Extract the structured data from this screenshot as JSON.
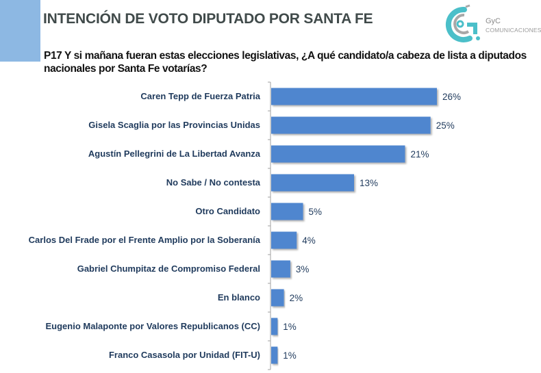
{
  "header": {
    "title": "INTENCIÓN DE VOTO DIPUTADO POR SANTA FE",
    "logo": {
      "name": "GyC",
      "subtitle": "COMUNICACIONES"
    }
  },
  "question": "P17 Y si mañana fueran estas elecciones legislativas, ¿A qué candidato/a cabeza de lista a diputados nacionales por Santa Fe votarías?",
  "colors": {
    "bar": "#4f86cf",
    "accent_block": "#8db8e3",
    "label": "#1f3a5c",
    "logo_teal": "#4bbfc9",
    "logo_gray": "#a8a8a8"
  },
  "chart_data": {
    "type": "bar",
    "orientation": "horizontal",
    "title": "INTENCIÓN DE VOTO DIPUTADO POR SANTA FE",
    "xlabel": "",
    "ylabel": "",
    "xlim": [
      0,
      26
    ],
    "grid": false,
    "categories": [
      "Caren Tepp de Fuerza Patria",
      "Gisela Scaglia por las Provincias Unidas",
      "Agustín Pellegrini de La Libertad Avanza",
      "No Sabe / No contesta",
      "Otro Candidato",
      "Carlos Del Frade por el Frente Amplio por la Soberanía",
      "Gabriel Chumpitaz de Compromiso Federal",
      "En blanco",
      "Eugenio Malaponte por Valores Republicanos (CC)",
      "Franco Casasola por Unidad (FIT-U)"
    ],
    "values": [
      26,
      25,
      21,
      13,
      5,
      4,
      3,
      2,
      1,
      1
    ],
    "value_labels": [
      "26%",
      "25%",
      "21%",
      "13%",
      "5%",
      "4%",
      "3%",
      "2%",
      "1%",
      "1%"
    ],
    "unit": "%"
  }
}
